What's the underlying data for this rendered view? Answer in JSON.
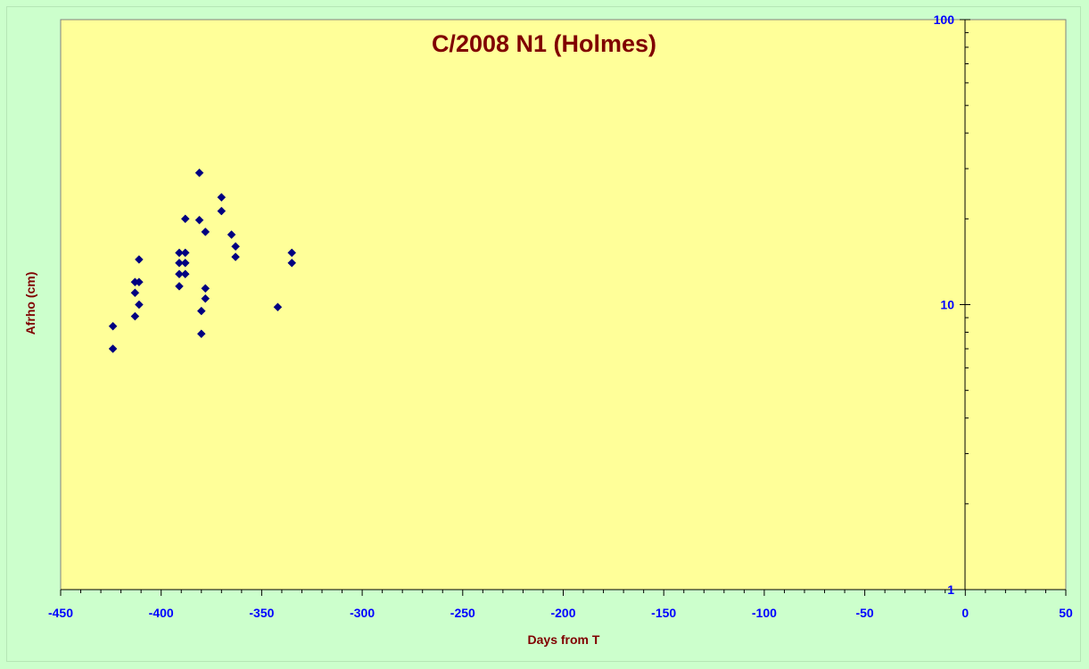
{
  "chart_data": {
    "type": "scatter",
    "title": "C/2008 N1 (Holmes)",
    "xlabel": "Days from T",
    "ylabel": "Afrho (cm)",
    "xlim": [
      -450,
      50
    ],
    "ylim": [
      1,
      100
    ],
    "y_scale": "log",
    "x_ticks": [
      -450,
      -400,
      -350,
      -300,
      -250,
      -200,
      -150,
      -100,
      -50,
      0,
      50
    ],
    "y_ticks": [
      1,
      10,
      100
    ],
    "grid": false,
    "legend": "none",
    "colors": {
      "plot_area": "#ffff99",
      "background": "#ccffcc",
      "marker": "#000080",
      "tick_labels": "#0000ff",
      "titles": "#800000"
    },
    "series": [
      {
        "marker": "diamond",
        "points": [
          [
            -424,
            8.4
          ],
          [
            -424,
            7.0
          ],
          [
            -413,
            12.0
          ],
          [
            -413,
            11.0
          ],
          [
            -413,
            9.1
          ],
          [
            -411,
            14.4
          ],
          [
            -411,
            12.0
          ],
          [
            -411,
            10.0
          ],
          [
            -391,
            15.2
          ],
          [
            -391,
            14.0
          ],
          [
            -391,
            12.8
          ],
          [
            -391,
            11.6
          ],
          [
            -388,
            20.0
          ],
          [
            -388,
            15.2
          ],
          [
            -388,
            14.0
          ],
          [
            -388,
            12.8
          ],
          [
            -381,
            29.0
          ],
          [
            -381,
            19.8
          ],
          [
            -380,
            9.5
          ],
          [
            -380,
            7.9
          ],
          [
            -378,
            18.0
          ],
          [
            -378,
            11.4
          ],
          [
            -378,
            10.5
          ],
          [
            -370,
            23.8
          ],
          [
            -370,
            21.3
          ],
          [
            -365,
            17.6
          ],
          [
            -363,
            16.0
          ],
          [
            -363,
            14.7
          ],
          [
            -342,
            9.8
          ],
          [
            -335,
            15.2
          ],
          [
            -335,
            14.0
          ]
        ]
      }
    ]
  }
}
